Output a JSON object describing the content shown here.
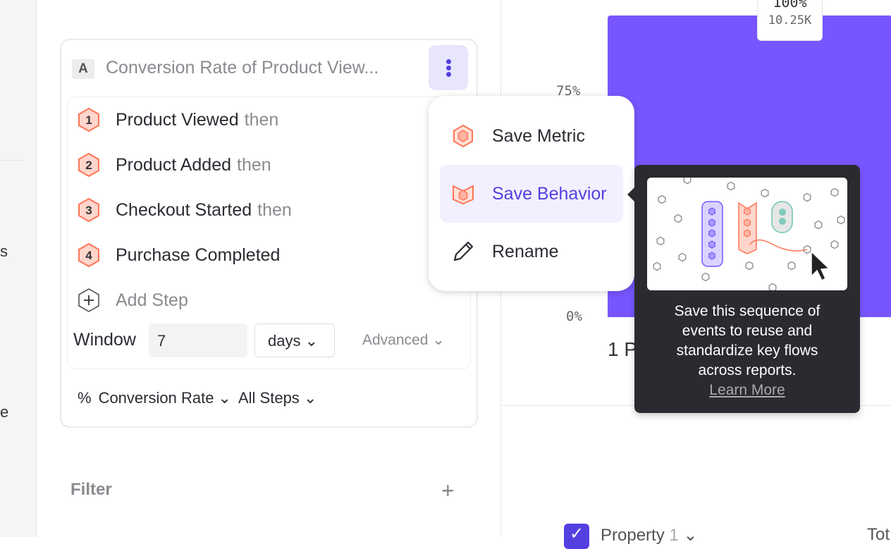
{
  "sidebar": {
    "cut_text_1": "s",
    "cut_text_2": "e"
  },
  "metric": {
    "badge": "A",
    "title": "Conversion Rate of Product View...",
    "menu_icon": "kebab-icon",
    "steps": [
      {
        "num": "1",
        "name": "Product Viewed",
        "suffix": "then"
      },
      {
        "num": "2",
        "name": "Product Added",
        "suffix": "then"
      },
      {
        "num": "3",
        "name": "Checkout Started",
        "suffix": "then"
      },
      {
        "num": "4",
        "name": "Purchase Completed",
        "suffix": ""
      }
    ],
    "add_step": "Add Step",
    "window_label": "Window",
    "window_value": "7",
    "window_unit": "days",
    "advanced": "Advanced",
    "measure_symbol": "%",
    "measure": "Conversion Rate",
    "steps_scope": "All Steps"
  },
  "filter": {
    "label": "Filter"
  },
  "menu": {
    "items": [
      {
        "label": "Save Metric",
        "icon": "metric-hex-icon"
      },
      {
        "label": "Save Behavior",
        "icon": "behavior-icon",
        "highlighted": true
      },
      {
        "label": "Rename",
        "icon": "pencil-icon"
      }
    ]
  },
  "tooltip": {
    "text": "Save this sequence of events to reuse and standardize key flows across reports.",
    "link": "Learn More"
  },
  "chart_data": {
    "type": "bar",
    "y_ticks": [
      "75%",
      "0%"
    ],
    "bar_label_pct": "100%",
    "bar_label_count": "10.25K",
    "categories": [
      "1 P"
    ],
    "values": [
      100
    ],
    "color": "#7856FF"
  },
  "table": {
    "property": "Property",
    "property_suffix": "1",
    "total": "Tot"
  }
}
